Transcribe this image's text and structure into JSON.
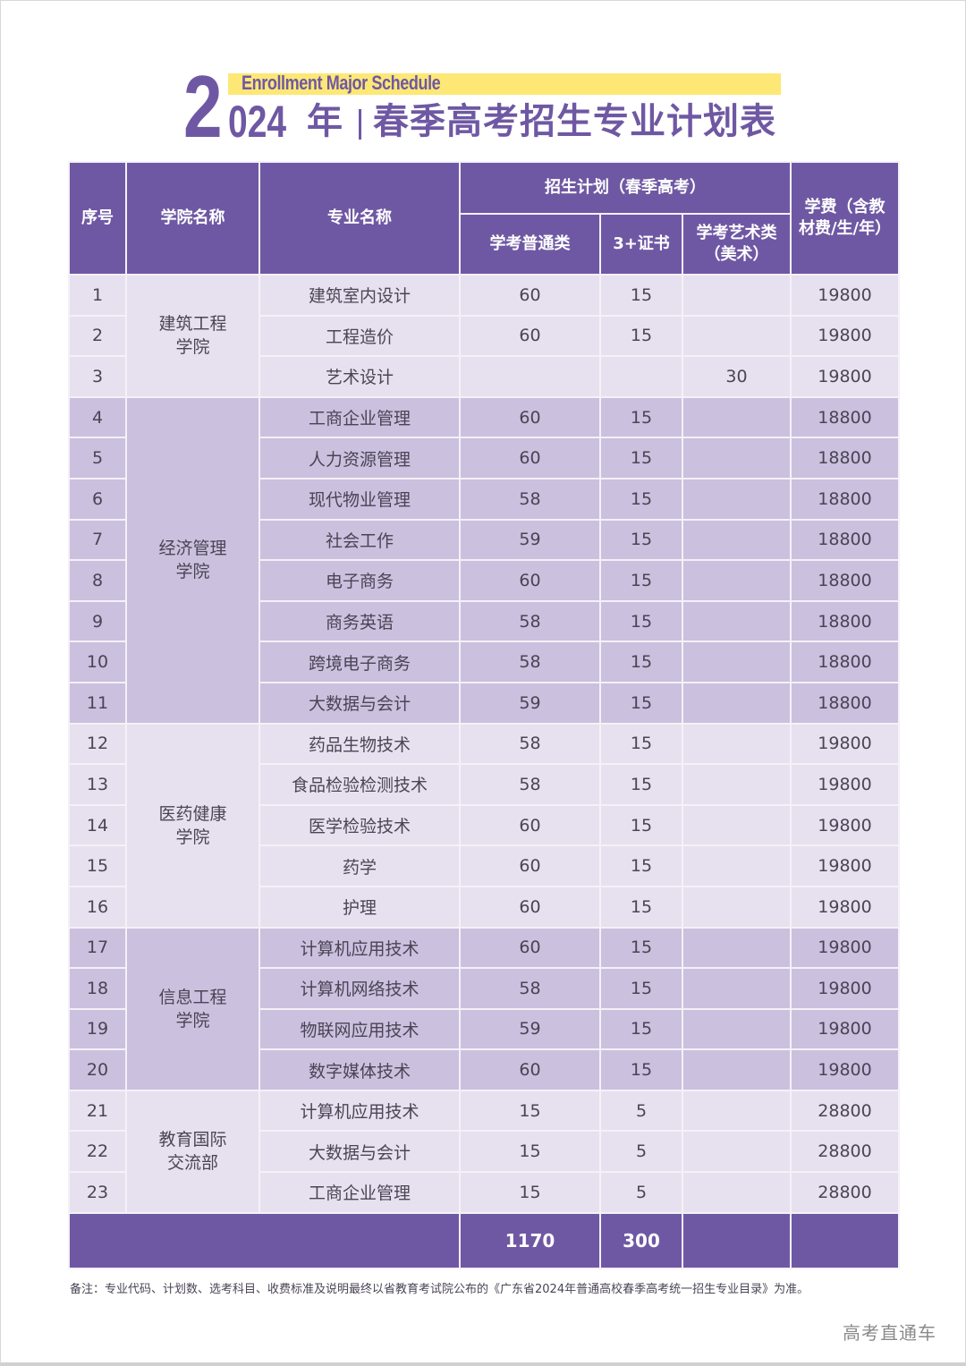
{
  "title": {
    "en": "Enrollment Major Schedule",
    "year_first_digit": "2",
    "year_rest": "024",
    "year_suffix": "年",
    "cn": "春季高考招生专业计划表"
  },
  "colors": {
    "primary": "#6f58a3",
    "highlight_bar": "#fde876",
    "row_light": "#e7e1ef",
    "row_dark": "#cbc0de"
  },
  "table": {
    "headers": {
      "index": "序号",
      "college": "学院名称",
      "major": "专业名称",
      "plan_group": "招生计划（春季高考）",
      "plan_general": "学考普通类",
      "plan_3cert": "3+证书",
      "plan_art": "学考艺术类（美术）",
      "tuition": "学费（含教材费/生/年）"
    },
    "colleges": [
      {
        "name": "建筑工程学院",
        "rows": [
          {
            "no": "1",
            "major": "建筑室内设计",
            "general": "60",
            "cert": "15",
            "art": "",
            "fee": "19800"
          },
          {
            "no": "2",
            "major": "工程造价",
            "general": "60",
            "cert": "15",
            "art": "",
            "fee": "19800"
          },
          {
            "no": "3",
            "major": "艺术设计",
            "general": "",
            "cert": "",
            "art": "30",
            "fee": "19800"
          }
        ]
      },
      {
        "name": "经济管理学院",
        "rows": [
          {
            "no": "4",
            "major": "工商企业管理",
            "general": "60",
            "cert": "15",
            "art": "",
            "fee": "18800"
          },
          {
            "no": "5",
            "major": "人力资源管理",
            "general": "60",
            "cert": "15",
            "art": "",
            "fee": "18800"
          },
          {
            "no": "6",
            "major": "现代物业管理",
            "general": "58",
            "cert": "15",
            "art": "",
            "fee": "18800"
          },
          {
            "no": "7",
            "major": "社会工作",
            "general": "59",
            "cert": "15",
            "art": "",
            "fee": "18800"
          },
          {
            "no": "8",
            "major": "电子商务",
            "general": "60",
            "cert": "15",
            "art": "",
            "fee": "18800"
          },
          {
            "no": "9",
            "major": "商务英语",
            "general": "58",
            "cert": "15",
            "art": "",
            "fee": "18800"
          },
          {
            "no": "10",
            "major": "跨境电子商务",
            "general": "58",
            "cert": "15",
            "art": "",
            "fee": "18800"
          },
          {
            "no": "11",
            "major": "大数据与会计",
            "general": "59",
            "cert": "15",
            "art": "",
            "fee": "18800"
          }
        ]
      },
      {
        "name": "医药健康学院",
        "rows": [
          {
            "no": "12",
            "major": "药品生物技术",
            "general": "58",
            "cert": "15",
            "art": "",
            "fee": "19800"
          },
          {
            "no": "13",
            "major": "食品检验检测技术",
            "general": "58",
            "cert": "15",
            "art": "",
            "fee": "19800"
          },
          {
            "no": "14",
            "major": "医学检验技术",
            "general": "60",
            "cert": "15",
            "art": "",
            "fee": "19800"
          },
          {
            "no": "15",
            "major": "药学",
            "general": "60",
            "cert": "15",
            "art": "",
            "fee": "19800"
          },
          {
            "no": "16",
            "major": "护理",
            "general": "60",
            "cert": "15",
            "art": "",
            "fee": "19800"
          }
        ]
      },
      {
        "name": "信息工程学院",
        "rows": [
          {
            "no": "17",
            "major": "计算机应用技术",
            "general": "60",
            "cert": "15",
            "art": "",
            "fee": "19800"
          },
          {
            "no": "18",
            "major": "计算机网络技术",
            "general": "58",
            "cert": "15",
            "art": "",
            "fee": "19800"
          },
          {
            "no": "19",
            "major": "物联网应用技术",
            "general": "59",
            "cert": "15",
            "art": "",
            "fee": "19800"
          },
          {
            "no": "20",
            "major": "数字媒体技术",
            "general": "60",
            "cert": "15",
            "art": "",
            "fee": "19800"
          }
        ]
      },
      {
        "name": "教育国际交流部",
        "rows": [
          {
            "no": "21",
            "major": "计算机应用技术",
            "general": "15",
            "cert": "5",
            "art": "",
            "fee": "28800"
          },
          {
            "no": "22",
            "major": "大数据与会计",
            "general": "15",
            "cert": "5",
            "art": "",
            "fee": "28800"
          },
          {
            "no": "23",
            "major": "工商企业管理",
            "general": "15",
            "cert": "5",
            "art": "",
            "fee": "28800"
          }
        ]
      }
    ],
    "totals": {
      "label": "",
      "general": "1170",
      "cert": "300",
      "art": "",
      "fee": ""
    }
  },
  "footnote": "备注：专业代码、计划数、选考科目、收费标准及说明最终以省教育考试院公布的《广东省2024年普通高校春季高考统一招生专业目录》为准。",
  "watermark": "高考直通车"
}
